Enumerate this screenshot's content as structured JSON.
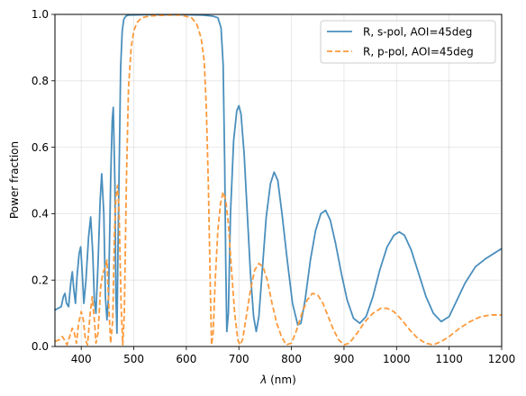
{
  "chart_data": {
    "type": "line",
    "xlabel_symbol": "λ",
    "xlabel_unit": " (nm)",
    "ylabel": "Power fraction",
    "xlim": [
      350,
      1200
    ],
    "ylim": [
      0.0,
      1.0
    ],
    "xticks": [
      400,
      500,
      600,
      700,
      800,
      900,
      1000,
      1100,
      1200
    ],
    "yticks": [
      0.0,
      0.2,
      0.4,
      0.6,
      0.8,
      1.0
    ],
    "ytick_labels": [
      "0.0",
      "0.2",
      "0.4",
      "0.6",
      "0.8",
      "1.0"
    ],
    "grid": true,
    "legend_position": "top-right",
    "colors": {
      "s_pol": "#4a8fbd",
      "p_pol": "#fd9a3b"
    },
    "series": [
      {
        "name": "R, s-pol, AOI=45deg",
        "style": "solid",
        "color": "#4a8fbd",
        "points": [
          [
            350,
            0.11
          ],
          [
            356,
            0.115
          ],
          [
            362,
            0.12
          ],
          [
            366,
            0.15
          ],
          [
            369,
            0.16
          ],
          [
            372,
            0.13
          ],
          [
            376,
            0.12
          ],
          [
            380,
            0.19
          ],
          [
            383,
            0.225
          ],
          [
            386,
            0.17
          ],
          [
            389,
            0.13
          ],
          [
            392,
            0.21
          ],
          [
            396,
            0.28
          ],
          [
            399,
            0.3
          ],
          [
            402,
            0.22
          ],
          [
            405,
            0.13
          ],
          [
            409,
            0.2
          ],
          [
            414,
            0.33
          ],
          [
            418,
            0.39
          ],
          [
            422,
            0.28
          ],
          [
            425,
            0.14
          ],
          [
            428,
            0.1
          ],
          [
            432,
            0.25
          ],
          [
            436,
            0.44
          ],
          [
            439,
            0.52
          ],
          [
            443,
            0.4
          ],
          [
            446,
            0.15
          ],
          [
            449,
            0.08
          ],
          [
            452,
            0.15
          ],
          [
            456,
            0.5
          ],
          [
            459,
            0.68
          ],
          [
            461,
            0.72
          ],
          [
            464,
            0.5
          ],
          [
            466,
            0.15
          ],
          [
            468,
            0.04
          ],
          [
            470,
            0.3
          ],
          [
            473,
            0.62
          ],
          [
            475,
            0.84
          ],
          [
            478,
            0.95
          ],
          [
            481,
            0.985
          ],
          [
            485,
            0.995
          ],
          [
            490,
            0.998
          ],
          [
            520,
            0.999
          ],
          [
            560,
            0.999
          ],
          [
            600,
            0.999
          ],
          [
            630,
            0.998
          ],
          [
            650,
            0.995
          ],
          [
            660,
            0.99
          ],
          [
            666,
            0.96
          ],
          [
            670,
            0.85
          ],
          [
            673,
            0.55
          ],
          [
            675,
            0.25
          ],
          [
            677,
            0.045
          ],
          [
            680,
            0.1
          ],
          [
            684,
            0.4
          ],
          [
            690,
            0.62
          ],
          [
            696,
            0.71
          ],
          [
            700,
            0.725
          ],
          [
            704,
            0.7
          ],
          [
            710,
            0.58
          ],
          [
            716,
            0.4
          ],
          [
            722,
            0.22
          ],
          [
            728,
            0.09
          ],
          [
            733,
            0.045
          ],
          [
            738,
            0.09
          ],
          [
            745,
            0.24
          ],
          [
            752,
            0.39
          ],
          [
            760,
            0.49
          ],
          [
            767,
            0.525
          ],
          [
            774,
            0.5
          ],
          [
            782,
            0.4
          ],
          [
            792,
            0.26
          ],
          [
            802,
            0.13
          ],
          [
            812,
            0.065
          ],
          [
            818,
            0.07
          ],
          [
            826,
            0.14
          ],
          [
            836,
            0.26
          ],
          [
            846,
            0.35
          ],
          [
            856,
            0.4
          ],
          [
            865,
            0.41
          ],
          [
            874,
            0.38
          ],
          [
            884,
            0.31
          ],
          [
            895,
            0.22
          ],
          [
            906,
            0.14
          ],
          [
            918,
            0.085
          ],
          [
            930,
            0.07
          ],
          [
            942,
            0.09
          ],
          [
            955,
            0.15
          ],
          [
            968,
            0.23
          ],
          [
            982,
            0.3
          ],
          [
            995,
            0.335
          ],
          [
            1005,
            0.345
          ],
          [
            1015,
            0.335
          ],
          [
            1028,
            0.29
          ],
          [
            1042,
            0.22
          ],
          [
            1056,
            0.15
          ],
          [
            1070,
            0.1
          ],
          [
            1085,
            0.075
          ],
          [
            1100,
            0.09
          ],
          [
            1115,
            0.14
          ],
          [
            1130,
            0.19
          ],
          [
            1150,
            0.24
          ],
          [
            1170,
            0.265
          ],
          [
            1185,
            0.28
          ],
          [
            1200,
            0.295
          ]
        ]
      },
      {
        "name": "R, p-pol, AOI=45deg",
        "style": "dashed",
        "color": "#fd9a3b",
        "points": [
          [
            350,
            0.015
          ],
          [
            358,
            0.02
          ],
          [
            364,
            0.03
          ],
          [
            368,
            0.02
          ],
          [
            373,
            0.005
          ],
          [
            378,
            0.03
          ],
          [
            383,
            0.055
          ],
          [
            387,
            0.04
          ],
          [
            391,
            0.01
          ],
          [
            395,
            0.07
          ],
          [
            400,
            0.105
          ],
          [
            404,
            0.08
          ],
          [
            408,
            0.02
          ],
          [
            412,
            0.005
          ],
          [
            417,
            0.1
          ],
          [
            421,
            0.15
          ],
          [
            425,
            0.08
          ],
          [
            428,
            0.01
          ],
          [
            432,
            0.04
          ],
          [
            437,
            0.18
          ],
          [
            441,
            0.22
          ],
          [
            446,
            0.24
          ],
          [
            449,
            0.26
          ],
          [
            452,
            0.14
          ],
          [
            456,
            0.01
          ],
          [
            460,
            0.08
          ],
          [
            463,
            0.33
          ],
          [
            466,
            0.45
          ],
          [
            469,
            0.485
          ],
          [
            472,
            0.41
          ],
          [
            476,
            0.12
          ],
          [
            479,
            0.005
          ],
          [
            482,
            0.1
          ],
          [
            486,
            0.5
          ],
          [
            490,
            0.78
          ],
          [
            495,
            0.9
          ],
          [
            500,
            0.95
          ],
          [
            506,
            0.975
          ],
          [
            515,
            0.99
          ],
          [
            530,
            0.995
          ],
          [
            560,
            0.998
          ],
          [
            590,
            0.998
          ],
          [
            610,
            0.99
          ],
          [
            620,
            0.97
          ],
          [
            628,
            0.93
          ],
          [
            634,
            0.86
          ],
          [
            638,
            0.72
          ],
          [
            642,
            0.48
          ],
          [
            646,
            0.15
          ],
          [
            648,
            0.005
          ],
          [
            651,
            0.04
          ],
          [
            655,
            0.2
          ],
          [
            660,
            0.35
          ],
          [
            665,
            0.43
          ],
          [
            670,
            0.465
          ],
          [
            675,
            0.44
          ],
          [
            680,
            0.37
          ],
          [
            686,
            0.23
          ],
          [
            692,
            0.1
          ],
          [
            698,
            0.02
          ],
          [
            702,
            0.005
          ],
          [
            707,
            0.02
          ],
          [
            714,
            0.09
          ],
          [
            722,
            0.17
          ],
          [
            730,
            0.23
          ],
          [
            738,
            0.25
          ],
          [
            746,
            0.24
          ],
          [
            754,
            0.2
          ],
          [
            763,
            0.13
          ],
          [
            772,
            0.07
          ],
          [
            781,
            0.03
          ],
          [
            790,
            0.005
          ],
          [
            800,
            0.01
          ],
          [
            810,
            0.05
          ],
          [
            820,
            0.1
          ],
          [
            830,
            0.14
          ],
          [
            840,
            0.16
          ],
          [
            850,
            0.155
          ],
          [
            860,
            0.13
          ],
          [
            870,
            0.09
          ],
          [
            880,
            0.05
          ],
          [
            890,
            0.02
          ],
          [
            900,
            0.005
          ],
          [
            910,
            0.01
          ],
          [
            925,
            0.04
          ],
          [
            940,
            0.075
          ],
          [
            955,
            0.1
          ],
          [
            970,
            0.115
          ],
          [
            982,
            0.115
          ],
          [
            995,
            0.105
          ],
          [
            1010,
            0.08
          ],
          [
            1025,
            0.05
          ],
          [
            1040,
            0.025
          ],
          [
            1055,
            0.01
          ],
          [
            1070,
            0.005
          ],
          [
            1085,
            0.015
          ],
          [
            1100,
            0.03
          ],
          [
            1120,
            0.055
          ],
          [
            1140,
            0.075
          ],
          [
            1160,
            0.09
          ],
          [
            1180,
            0.095
          ],
          [
            1200,
            0.095
          ]
        ]
      }
    ]
  }
}
